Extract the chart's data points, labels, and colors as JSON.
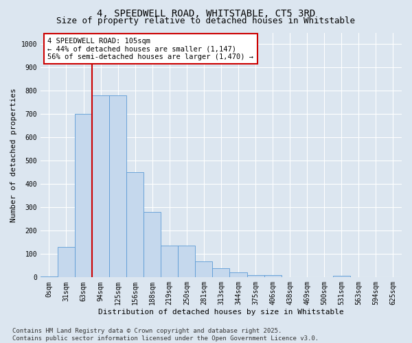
{
  "title": "4, SPEEDWELL ROAD, WHITSTABLE, CT5 3RD",
  "subtitle": "Size of property relative to detached houses in Whitstable",
  "xlabel": "Distribution of detached houses by size in Whitstable",
  "ylabel": "Number of detached properties",
  "bar_labels": [
    "0sqm",
    "31sqm",
    "63sqm",
    "94sqm",
    "125sqm",
    "156sqm",
    "188sqm",
    "219sqm",
    "250sqm",
    "281sqm",
    "313sqm",
    "344sqm",
    "375sqm",
    "406sqm",
    "438sqm",
    "469sqm",
    "500sqm",
    "531sqm",
    "563sqm",
    "594sqm",
    "625sqm"
  ],
  "bar_values": [
    5,
    130,
    700,
    780,
    780,
    450,
    280,
    135,
    135,
    70,
    38,
    22,
    10,
    10,
    0,
    0,
    0,
    8,
    0,
    0,
    0
  ],
  "bar_color": "#c5d8ed",
  "bar_edge_color": "#5b9bd5",
  "bg_color": "#dce6f0",
  "grid_color": "#ffffff",
  "vline_x": 3.0,
  "vline_color": "#cc0000",
  "annotation_text": "4 SPEEDWELL ROAD: 105sqm\n← 44% of detached houses are smaller (1,147)\n56% of semi-detached houses are larger (1,470) →",
  "annotation_box_color": "#ffffff",
  "annotation_box_edge": "#cc0000",
  "ylim": [
    0,
    1050
  ],
  "yticks": [
    0,
    100,
    200,
    300,
    400,
    500,
    600,
    700,
    800,
    900,
    1000
  ],
  "footnote": "Contains HM Land Registry data © Crown copyright and database right 2025.\nContains public sector information licensed under the Open Government Licence v3.0.",
  "title_fontsize": 10,
  "subtitle_fontsize": 9,
  "tick_fontsize": 7,
  "ylabel_fontsize": 8,
  "xlabel_fontsize": 8,
  "annotation_fontsize": 7.5,
  "footnote_fontsize": 6.5
}
